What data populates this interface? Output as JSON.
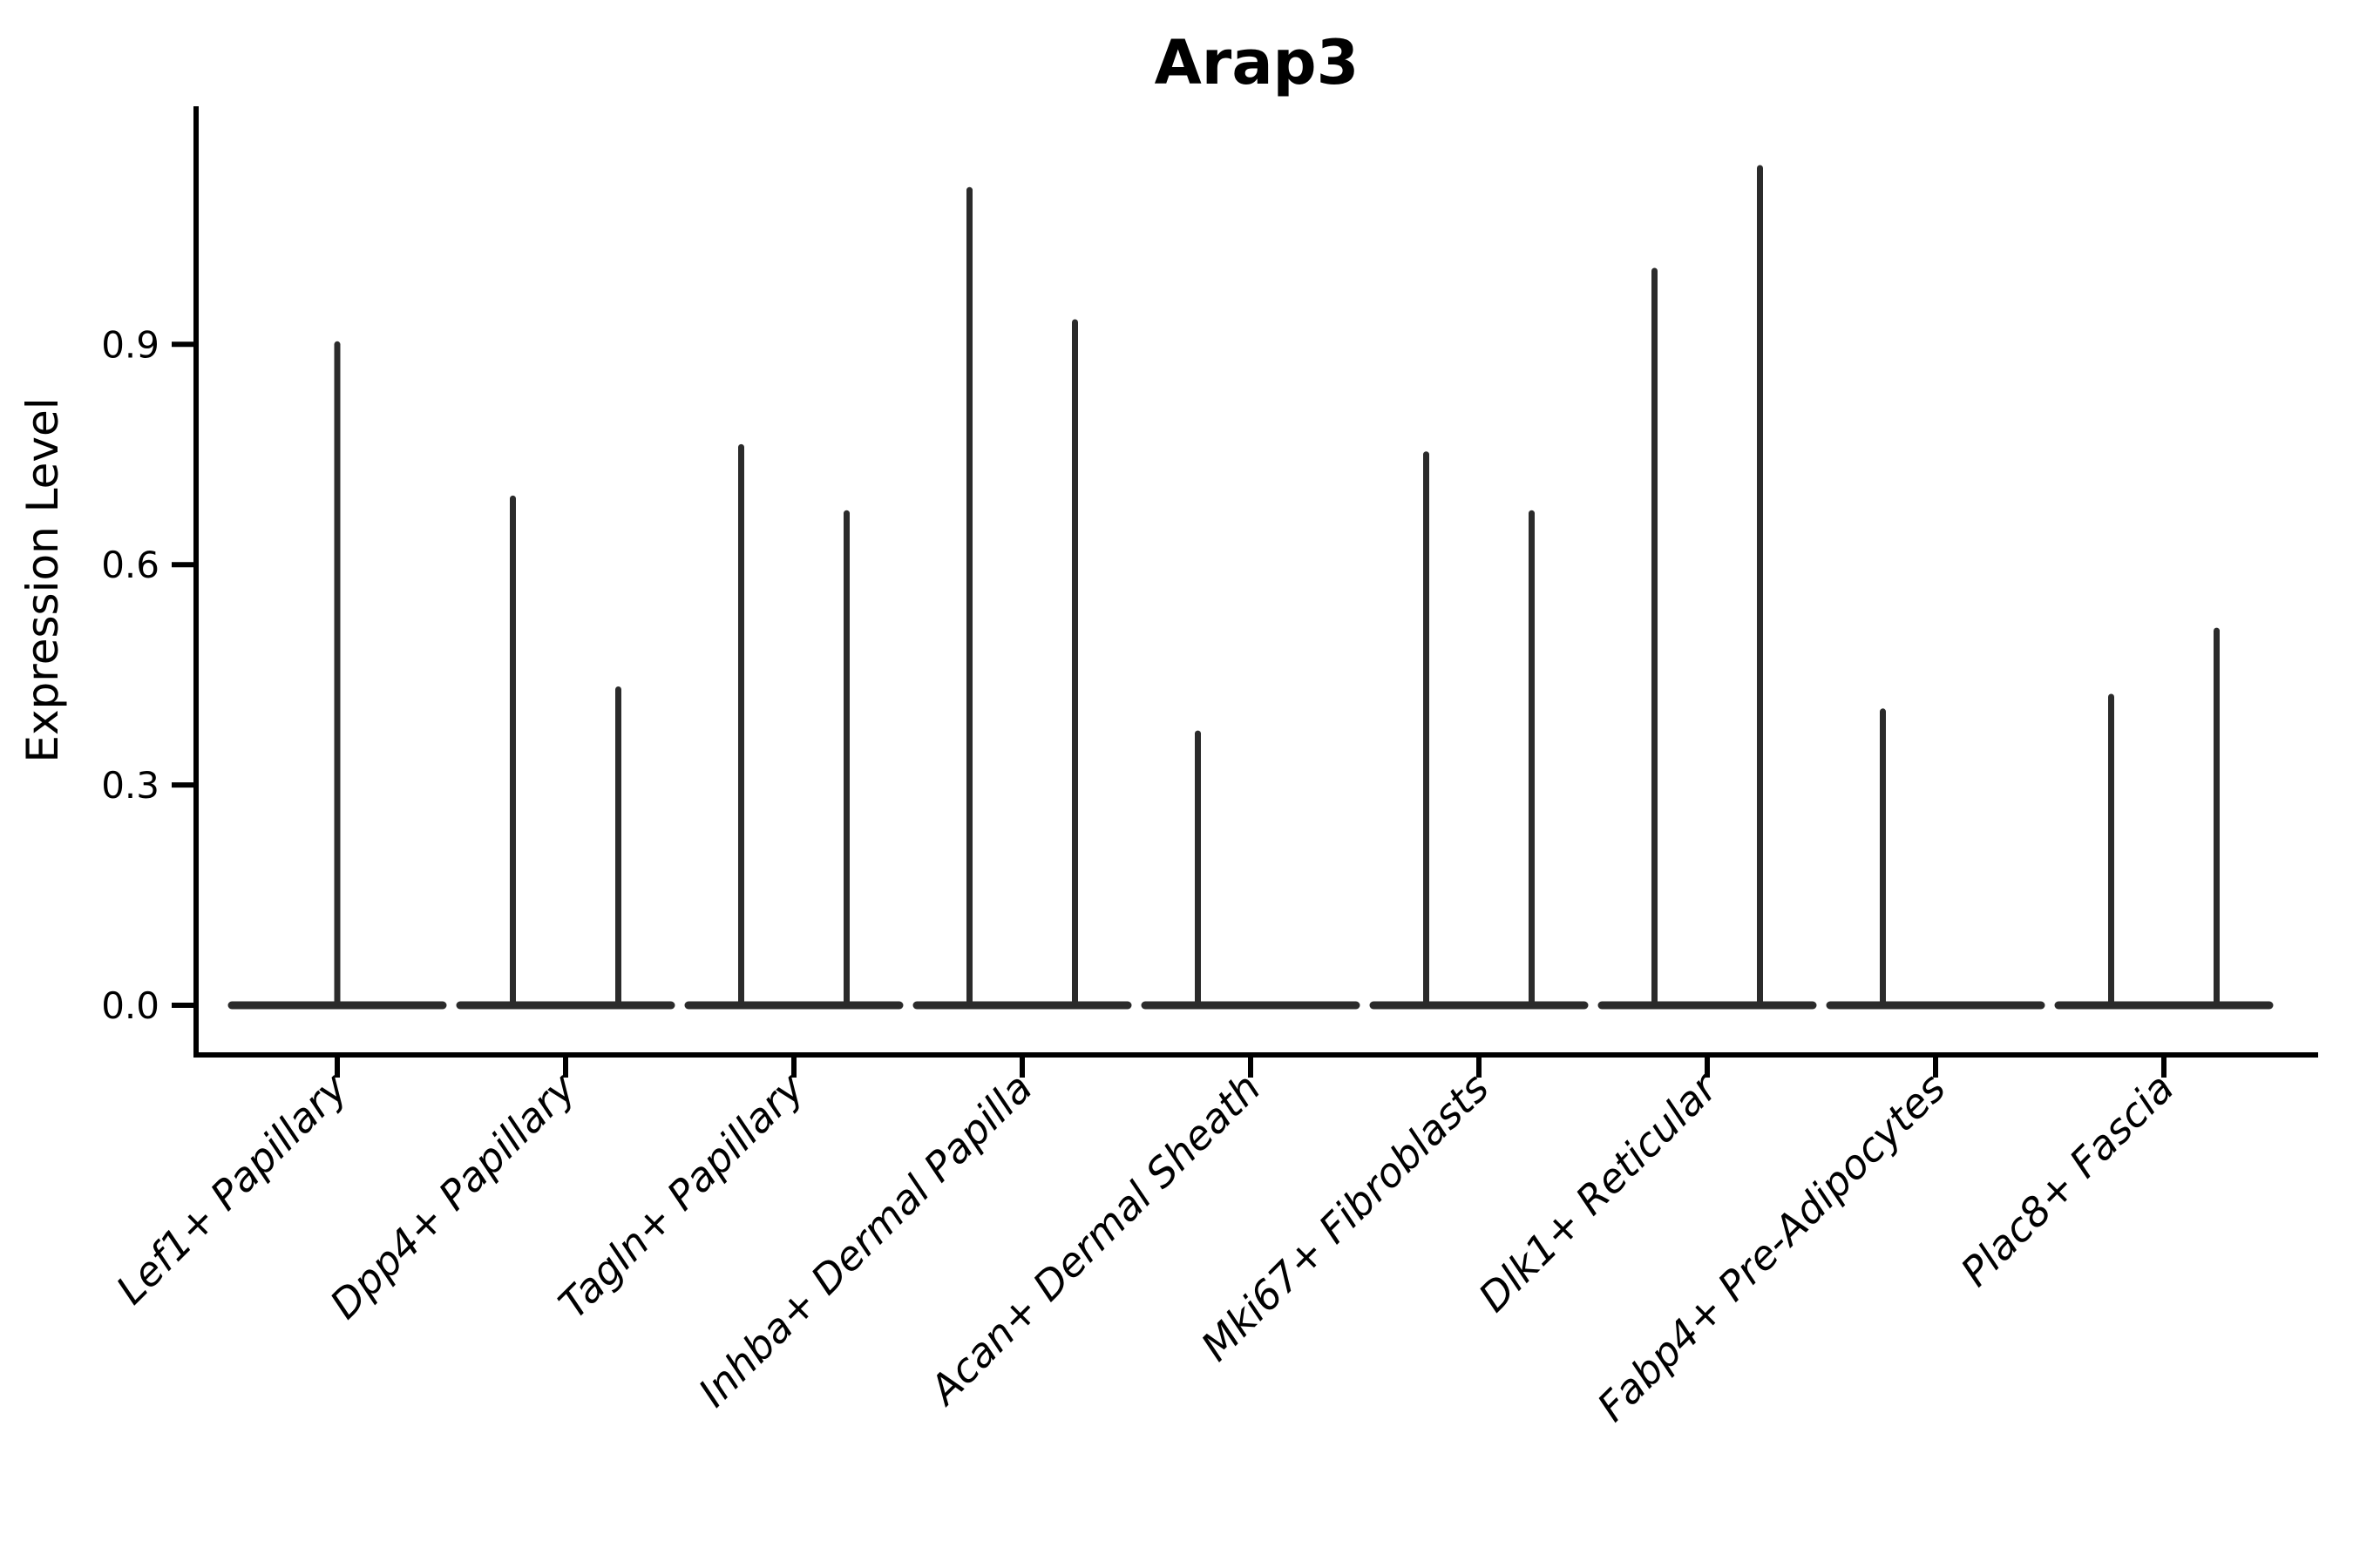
{
  "title": "Arap3",
  "chart_data": {
    "type": "violin",
    "title": "Arap3",
    "xlabel": "",
    "ylabel": "Expression Level",
    "yticks": [
      "0.0",
      "0.3",
      "0.6",
      "0.9"
    ],
    "ytick_values": [
      0.0,
      0.3,
      0.6,
      0.9
    ],
    "ylim": [
      -0.07,
      1.23
    ],
    "grid": false,
    "legend": "none",
    "violin_color": "#2b2b2b",
    "axis_color": "#000000",
    "background_color": "#ffffff",
    "categories": [
      "Lef1+ Papillary",
      "Dpp4+ Papillary",
      "Tagln+ Papillary",
      "Inhba+ Dermal Papilla",
      "Acan+ Dermal Sheath",
      "Mki67+ Fibroblasts",
      "Dlk1+ Reticular",
      "Fabp4+ Pre-Adipocytes",
      "Plac8+ Fascia"
    ],
    "violins": [
      {
        "category": "Lef1+ Papillary",
        "spikes": [
          {
            "position": "center",
            "max": 0.9
          }
        ]
      },
      {
        "category": "Dpp4+ Papillary",
        "spikes": [
          {
            "position": "left",
            "max": 0.69
          },
          {
            "position": "right",
            "max": 0.43
          }
        ]
      },
      {
        "category": "Tagln+ Papillary",
        "spikes": [
          {
            "position": "left",
            "max": 0.76
          },
          {
            "position": "right",
            "max": 0.67
          }
        ]
      },
      {
        "category": "Inhba+ Dermal Papilla",
        "spikes": [
          {
            "position": "left",
            "max": 1.11
          },
          {
            "position": "right",
            "max": 0.93
          }
        ]
      },
      {
        "category": "Acan+ Dermal Sheath",
        "spikes": [
          {
            "position": "left",
            "max": 0.37
          },
          {
            "position": "right",
            "max": 0.0
          }
        ]
      },
      {
        "category": "Mki67+ Fibroblasts",
        "spikes": [
          {
            "position": "left",
            "max": 0.75
          },
          {
            "position": "right",
            "max": 0.67
          }
        ]
      },
      {
        "category": "Dlk1+ Reticular",
        "spikes": [
          {
            "position": "left",
            "max": 1.0
          },
          {
            "position": "right",
            "max": 1.14
          }
        ]
      },
      {
        "category": "Fabp4+ Pre-Adipocytes",
        "spikes": [
          {
            "position": "left",
            "max": 0.4
          },
          {
            "position": "right",
            "max": 0.0
          }
        ]
      },
      {
        "category": "Plac8+ Fascia",
        "spikes": [
          {
            "position": "left",
            "max": 0.42
          },
          {
            "position": "right",
            "max": 0.51
          }
        ]
      }
    ]
  }
}
